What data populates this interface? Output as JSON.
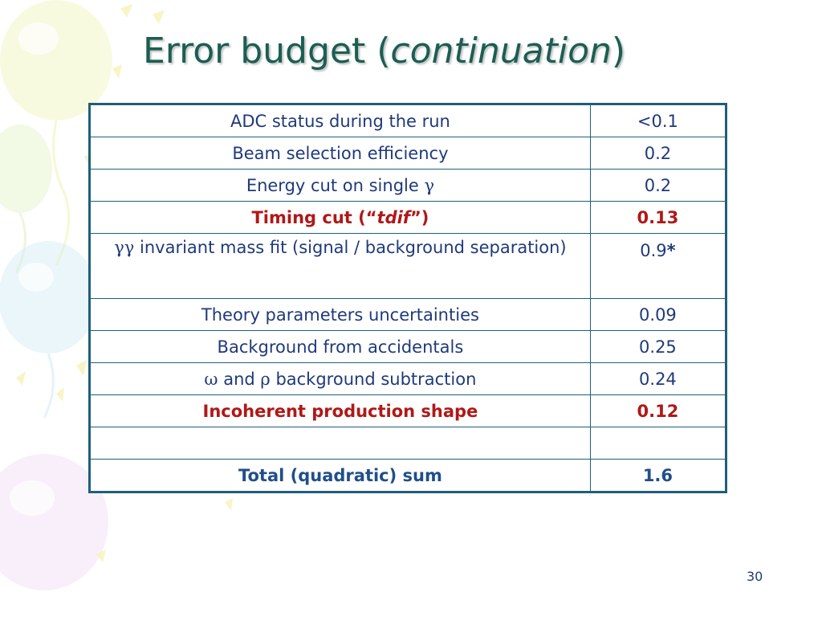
{
  "slide": {
    "title_main": "Error budget (",
    "title_italic": "continuation",
    "title_close": ")",
    "page_number": "30"
  },
  "table": {
    "rows": [
      {
        "label": "ADC status during the run",
        "value": "<0.1"
      },
      {
        "label": "Beam selection efficiency",
        "value": "0.2"
      },
      {
        "label_prefix": "Energy cut on single ",
        "label_symbol": "γ",
        "value": "0.2"
      },
      {
        "label_prefix": "Timing cut (“",
        "label_italic": "tdif",
        "label_suffix": "”)",
        "value": "0.13",
        "highlight": "red"
      },
      {
        "label_symbol": "γγ",
        "label_suffix": " invariant mass fit (signal / background separation)",
        "value_number": "0.9",
        "value_mark": "*"
      },
      {
        "label": "Theory parameters uncertainties",
        "value": "0.09"
      },
      {
        "label": "Background from accidentals",
        "value": "0.25"
      },
      {
        "label_symbol_1": "ω",
        "label_mid": " and ",
        "label_symbol_2": "ρ",
        "label_suffix": " background subtraction",
        "value": "0.24"
      },
      {
        "label": "Incoherent production shape",
        "value": "0.12",
        "highlight": "red"
      },
      {
        "label": "",
        "value": ""
      },
      {
        "label": "Total (quadratic) sum",
        "value": "1.6",
        "highlight": "total"
      }
    ]
  },
  "colors": {
    "title": "#1b5e52",
    "table_border": "#1f5f7a",
    "text": "#1f3a7a",
    "highlight_red": "#b01818",
    "total_blue": "#1f4f8a"
  }
}
